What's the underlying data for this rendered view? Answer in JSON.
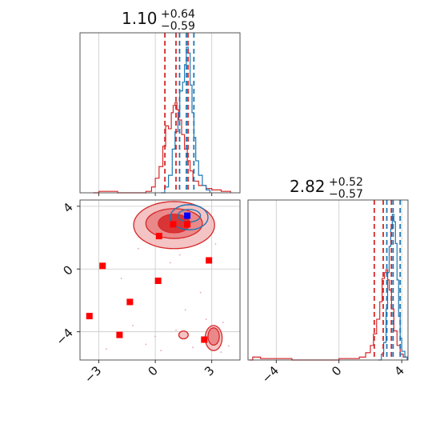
{
  "colors": {
    "blue": "#1f77b4",
    "red": "#d62728",
    "red_fill_outer": "#f2b8b9",
    "red_fill_inner": "#d62728",
    "marker_red": "#ff0000",
    "marker_blue": "#0000ff",
    "grid": "#c8c8c8"
  },
  "titles": {
    "p1": {
      "value": "1.10",
      "plus": "+0.64",
      "minus": "−0.59"
    },
    "p2": {
      "value": "2.82",
      "plus": "+0.52",
      "minus": "−0.57"
    }
  },
  "chart_data": {
    "type": "corner",
    "grid": true,
    "param1": {
      "range": [
        -4,
        4.5
      ],
      "ticks": [
        -3,
        0,
        3
      ],
      "tick_labels": [
        "−3",
        "0",
        "3"
      ],
      "quantile_lines": {
        "red": [
          0.51,
          1.1,
          1.74
        ],
        "blue": [
          1.29,
          1.65,
          2.05
        ]
      },
      "hist_blue": [
        [
          0.3,
          0.0
        ],
        [
          0.5,
          0.04
        ],
        [
          0.7,
          0.12
        ],
        [
          0.9,
          0.3
        ],
        [
          1.05,
          0.42
        ],
        [
          1.2,
          0.55
        ],
        [
          1.3,
          0.7
        ],
        [
          1.45,
          0.76
        ],
        [
          1.55,
          0.88
        ],
        [
          1.65,
          1.0
        ],
        [
          1.75,
          0.96
        ],
        [
          1.85,
          0.74
        ],
        [
          1.95,
          0.55
        ],
        [
          2.05,
          0.38
        ],
        [
          2.15,
          0.22
        ],
        [
          2.3,
          0.12
        ],
        [
          2.5,
          0.05
        ],
        [
          2.7,
          0.02
        ],
        [
          2.9,
          0.0
        ]
      ],
      "hist_red": [
        [
          -3.3,
          0.0
        ],
        [
          -3.0,
          0.01
        ],
        [
          -2.0,
          0.0
        ],
        [
          -0.5,
          0.01
        ],
        [
          -0.2,
          0.04
        ],
        [
          0.0,
          0.1
        ],
        [
          0.2,
          0.18
        ],
        [
          0.4,
          0.32
        ],
        [
          0.55,
          0.46
        ],
        [
          0.7,
          0.44
        ],
        [
          0.85,
          0.55
        ],
        [
          0.95,
          0.6
        ],
        [
          1.05,
          0.62
        ],
        [
          1.15,
          0.57
        ],
        [
          1.25,
          0.5
        ],
        [
          1.4,
          0.4
        ],
        [
          1.55,
          0.3
        ],
        [
          1.7,
          0.22
        ],
        [
          1.85,
          0.15
        ],
        [
          2.0,
          0.08
        ],
        [
          2.3,
          0.05
        ],
        [
          2.7,
          0.03
        ],
        [
          3.0,
          0.02
        ],
        [
          3.5,
          0.01
        ],
        [
          4.0,
          0.0
        ]
      ]
    },
    "param2": {
      "range": [
        -5.8,
        4.4
      ],
      "ticks": [
        -4,
        0,
        4
      ],
      "tick_labels": [
        "−4",
        "0",
        "4"
      ],
      "quantile_lines": {
        "red": [
          2.25,
          2.82,
          3.34
        ],
        "blue": [
          3.05,
          3.45,
          3.9
        ]
      },
      "hist_blue": [
        [
          2.5,
          0.0
        ],
        [
          2.7,
          0.04
        ],
        [
          2.85,
          0.12
        ],
        [
          3.0,
          0.35
        ],
        [
          3.1,
          0.6
        ],
        [
          3.2,
          0.78
        ],
        [
          3.3,
          0.9
        ],
        [
          3.4,
          1.0
        ],
        [
          3.5,
          0.95
        ],
        [
          3.6,
          0.8
        ],
        [
          3.7,
          0.55
        ],
        [
          3.8,
          0.3
        ],
        [
          3.9,
          0.15
        ],
        [
          4.0,
          0.06
        ],
        [
          4.2,
          0.02
        ],
        [
          4.35,
          0.0
        ]
      ],
      "hist_red": [
        [
          -5.7,
          0.0
        ],
        [
          -5.5,
          0.02
        ],
        [
          -5.0,
          0.01
        ],
        [
          -4.5,
          0.01
        ],
        [
          -3.0,
          0.0
        ],
        [
          0.0,
          0.01
        ],
        [
          1.3,
          0.02
        ],
        [
          1.7,
          0.05
        ],
        [
          2.0,
          0.1
        ],
        [
          2.2,
          0.18
        ],
        [
          2.4,
          0.28
        ],
        [
          2.6,
          0.4
        ],
        [
          2.75,
          0.56
        ],
        [
          2.9,
          0.6
        ],
        [
          3.0,
          0.62
        ],
        [
          3.1,
          0.55
        ],
        [
          3.2,
          0.48
        ],
        [
          3.35,
          0.35
        ],
        [
          3.5,
          0.2
        ],
        [
          3.7,
          0.1
        ],
        [
          3.9,
          0.04
        ],
        [
          4.1,
          0.02
        ],
        [
          4.35,
          0.0
        ]
      ]
    },
    "joint": {
      "xlim": [
        -4,
        4.5
      ],
      "ylim": [
        -5.8,
        4.4
      ],
      "red_contours_outer": [
        {
          "cx": 1.0,
          "cy": 2.8,
          "rx": 2.15,
          "ry": 1.5
        },
        {
          "cx": 3.1,
          "cy": -4.4,
          "rx": 0.45,
          "ry": 0.8
        },
        {
          "cx": 1.5,
          "cy": -4.2,
          "rx": 0.25,
          "ry": 0.25
        }
      ],
      "red_contours_inner": [
        {
          "cx": 1.0,
          "cy": 2.9,
          "rx": 1.5,
          "ry": 0.95
        },
        {
          "cx": 3.1,
          "cy": -4.3,
          "rx": 0.3,
          "ry": 0.55
        }
      ],
      "red_contours_core": [
        {
          "cx": 1.0,
          "cy": 2.9,
          "rx": 0.85,
          "ry": 0.6
        }
      ],
      "blue_contours": [
        {
          "cx": 1.8,
          "cy": 3.3,
          "rx": 1.0,
          "ry": 0.8
        },
        {
          "cx": 1.8,
          "cy": 3.4,
          "rx": 0.6,
          "ry": 0.4
        }
      ],
      "red_markers": [
        [
          -3.5,
          -3.0
        ],
        [
          -2.8,
          0.2
        ],
        [
          -1.9,
          -4.2
        ],
        [
          -1.35,
          -2.1
        ],
        [
          0.15,
          -0.75
        ],
        [
          0.2,
          2.1
        ],
        [
          0.95,
          2.85
        ],
        [
          1.7,
          2.85
        ],
        [
          2.85,
          0.55
        ],
        [
          2.6,
          -4.5
        ]
      ],
      "blue_markers": [
        [
          1.7,
          3.4
        ]
      ],
      "scatter_dots": [
        [
          -1.2,
          -3.6
        ],
        [
          -0.5,
          -4.8
        ],
        [
          0.3,
          -5.2
        ],
        [
          1.1,
          -3.9
        ],
        [
          2.0,
          -5.0
        ],
        [
          3.6,
          -3.4
        ],
        [
          3.9,
          -4.9
        ],
        [
          -2.6,
          -5.1
        ],
        [
          0.8,
          0.4
        ],
        [
          2.4,
          -1.5
        ],
        [
          1.6,
          -2.6
        ],
        [
          3.2,
          1.6
        ],
        [
          -0.9,
          1.3
        ],
        [
          2.7,
          -3.2
        ],
        [
          0.0,
          -4.3
        ],
        [
          3.5,
          -5.3
        ],
        [
          1.3,
          0.9
        ],
        [
          -1.8,
          -0.6
        ]
      ]
    }
  }
}
